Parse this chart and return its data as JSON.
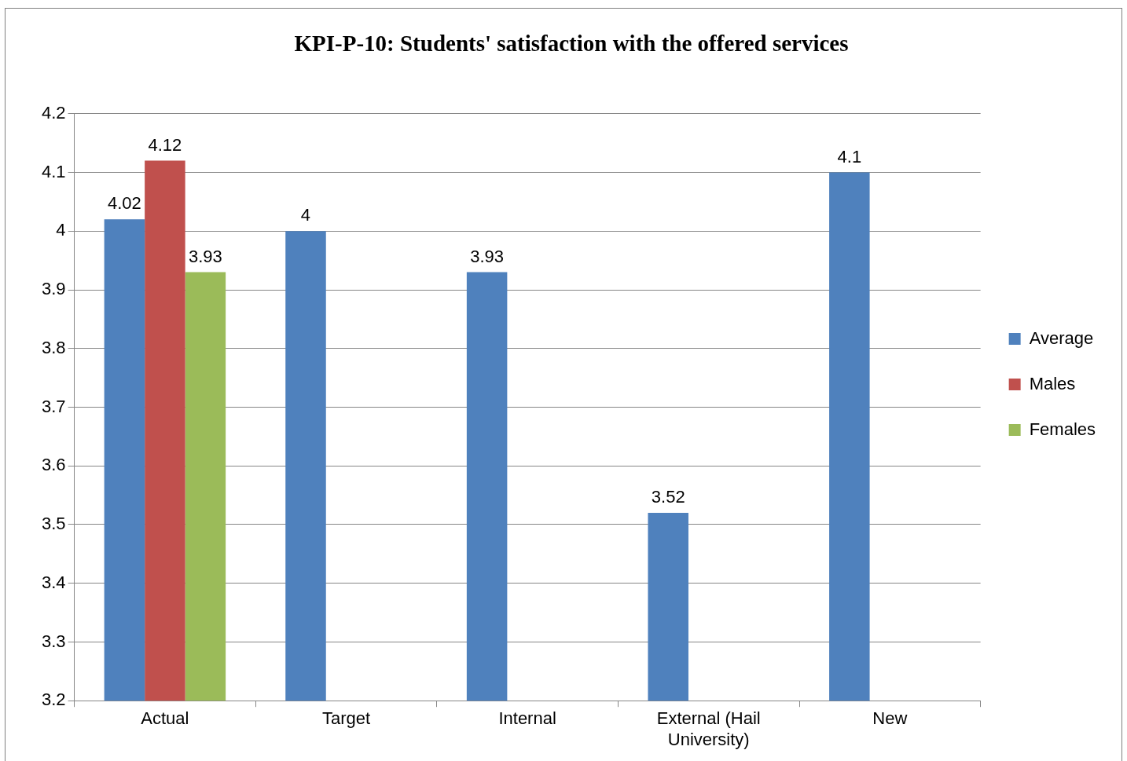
{
  "chart_data": {
    "type": "bar",
    "title": "KPI-P-10: Students' satisfaction with the offered services",
    "categories": [
      "Actual",
      "Target",
      "Internal",
      "External (Hail University)",
      "New"
    ],
    "series": [
      {
        "name": "Average",
        "color": "#4f81bd",
        "values": [
          4.02,
          4,
          3.93,
          3.52,
          4.1
        ]
      },
      {
        "name": "Males",
        "color": "#c0504d",
        "values": [
          4.12,
          null,
          null,
          null,
          null
        ]
      },
      {
        "name": "Females",
        "color": "#9bbb59",
        "values": [
          3.93,
          null,
          null,
          null,
          null
        ]
      }
    ],
    "ylim": [
      3.2,
      4.2
    ],
    "yticks": [
      3.2,
      3.3,
      3.4,
      3.5,
      3.6,
      3.7,
      3.8,
      3.9,
      4,
      4.1,
      4.2
    ],
    "grid": "y",
    "legend": "right",
    "data_labels": true
  }
}
